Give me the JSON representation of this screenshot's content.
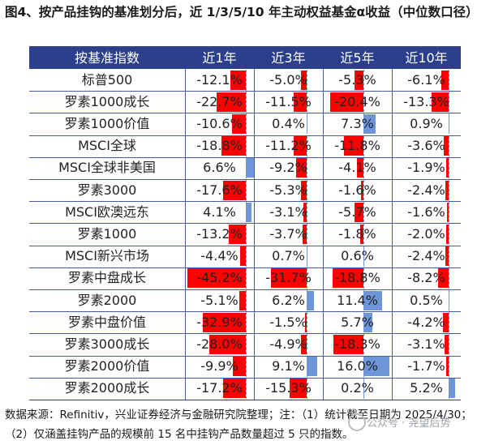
{
  "title": "图4、按产品挂钩的基准划分后，近 1/3/5/10 年主动权益基金α收益（中位数口径）",
  "chart_data": {
    "type": "table",
    "header_first": "按基准指数",
    "columns": [
      "近1年",
      "近3年",
      "近5年",
      "近10年"
    ],
    "rows": [
      {
        "name": "标普500",
        "values": [
          -12.1,
          -5.0,
          -5.3,
          -6.1
        ]
      },
      {
        "name": "罗素1000成长",
        "values": [
          -22.7,
          -11.5,
          -20.4,
          -13.3
        ]
      },
      {
        "name": "罗素1000价值",
        "values": [
          -10.6,
          0.4,
          7.3,
          0.9
        ]
      },
      {
        "name": "MSCI全球",
        "values": [
          -18.8,
          -11.2,
          -11.8,
          -3.6
        ]
      },
      {
        "name": "MSCI全球非美国",
        "values": [
          6.6,
          -9.2,
          -4.1,
          -1.9
        ]
      },
      {
        "name": "罗素3000",
        "values": [
          -17.6,
          -5.3,
          -1.6,
          -2.4
        ]
      },
      {
        "name": "MSCI欧澳远东",
        "values": [
          4.1,
          -3.1,
          -5.7,
          -1.6
        ]
      },
      {
        "name": "罗素1000",
        "values": [
          -13.2,
          -3.7,
          -1.8,
          -2.0
        ]
      },
      {
        "name": "MSCI新兴市场",
        "values": [
          -4.4,
          0.7,
          0.6,
          -2.4
        ]
      },
      {
        "name": "罗素中盘成长",
        "values": [
          -45.2,
          -31.7,
          -18.8,
          -8.2
        ]
      },
      {
        "name": "罗素2000",
        "values": [
          -5.1,
          6.2,
          11.4,
          0.5
        ]
      },
      {
        "name": "罗素中盘价值",
        "values": [
          -32.9,
          -1.5,
          5.7,
          -4.2
        ]
      },
      {
        "name": "罗素3000成长",
        "values": [
          -28.0,
          -4.9,
          -18.3,
          -3.1
        ]
      },
      {
        "name": "罗素2000价值",
        "values": [
          -9.9,
          9.1,
          16.0,
          -1.7
        ]
      },
      {
        "name": "罗素2000成长",
        "values": [
          -17.2,
          -15.3,
          0.2,
          5.2
        ]
      }
    ],
    "unit": "%",
    "colors": {
      "negative": "#ff0000",
      "positive": "#6d95d8",
      "header": "#2b3f8c"
    }
  },
  "footnotes": [
    "数据来源：Refinitiv，兴业证券经济与金融研究院整理；注：（1）统计截至日期为 2025/4/30；",
    "（2）仅涵盖挂钩产品的规模前 15 名中挂钩产品数量超过 5 只的指数。"
  ],
  "watermark": "公众号 · 尧望后势"
}
